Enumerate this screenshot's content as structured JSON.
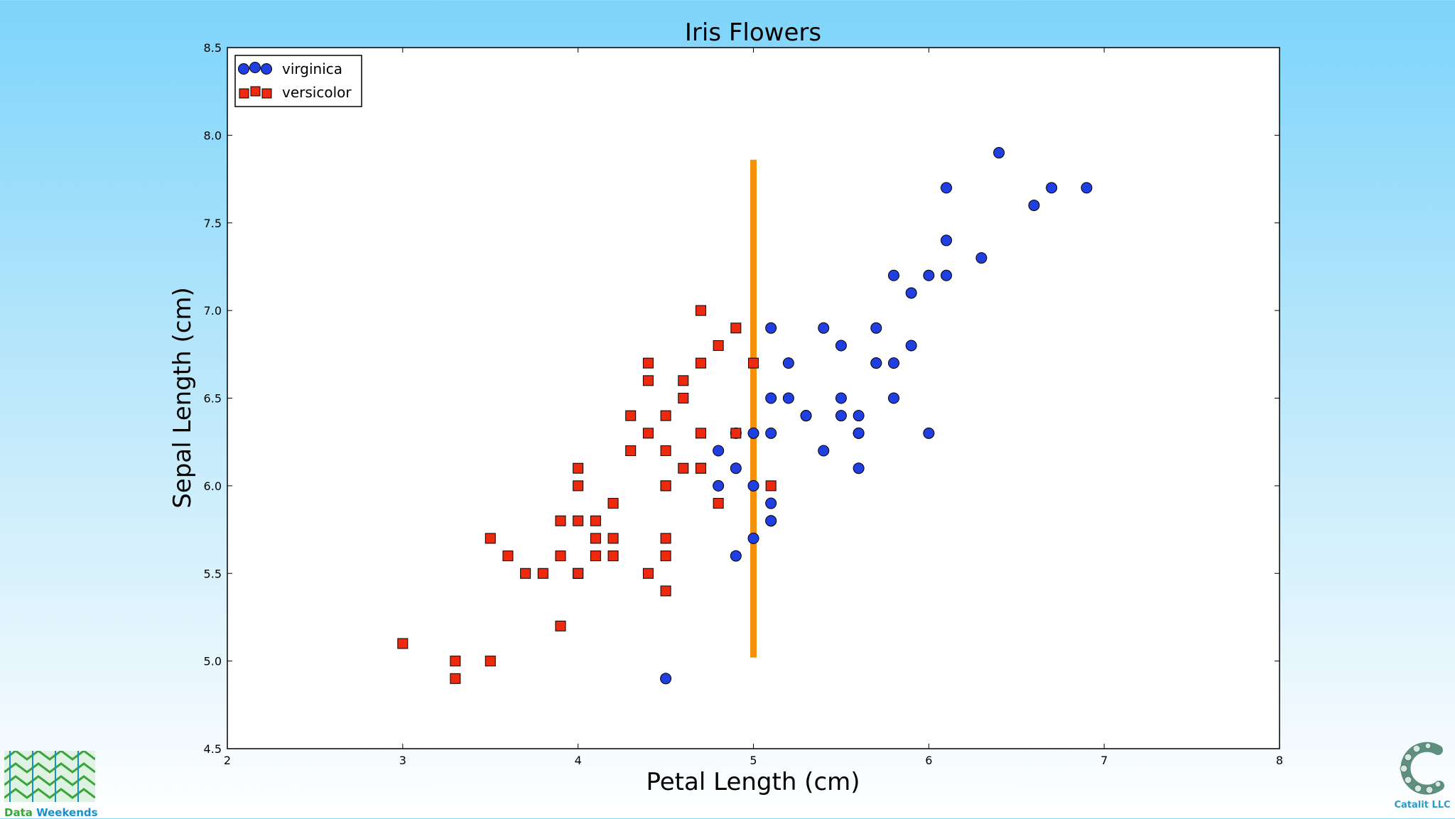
{
  "chart_data": {
    "type": "scatter",
    "title": "Iris Flowers",
    "xlabel": "Petal Length (cm)",
    "ylabel": "Sepal Length (cm)",
    "xlim": [
      2,
      8
    ],
    "ylim": [
      4.5,
      8.5
    ],
    "xticks": [
      "2",
      "3",
      "4",
      "5",
      "6",
      "7",
      "8"
    ],
    "yticks": [
      "4.5",
      "5.0",
      "5.5",
      "6.0",
      "6.5",
      "7.0",
      "7.5",
      "8.0",
      "8.5"
    ],
    "grid": false,
    "legend_position": "top-left",
    "series": [
      {
        "name": "virginica",
        "marker": "circle",
        "color": "#1f3fe0",
        "points": [
          [
            6.0,
            6.3
          ],
          [
            5.1,
            5.8
          ],
          [
            5.9,
            7.1
          ],
          [
            5.6,
            6.3
          ],
          [
            5.8,
            6.5
          ],
          [
            6.6,
            7.6
          ],
          [
            4.5,
            4.9
          ],
          [
            6.3,
            7.3
          ],
          [
            5.8,
            6.7
          ],
          [
            6.1,
            7.2
          ],
          [
            5.1,
            6.5
          ],
          [
            5.3,
            6.4
          ],
          [
            5.5,
            6.8
          ],
          [
            5.0,
            5.7
          ],
          [
            5.1,
            5.8
          ],
          [
            5.3,
            6.4
          ],
          [
            5.5,
            6.5
          ],
          [
            6.7,
            7.7
          ],
          [
            6.9,
            7.7
          ],
          [
            5.0,
            6.0
          ],
          [
            5.7,
            6.9
          ],
          [
            4.9,
            5.6
          ],
          [
            4.9,
            6.3
          ],
          [
            5.7,
            6.7
          ],
          [
            6.0,
            7.2
          ],
          [
            4.8,
            6.2
          ],
          [
            4.9,
            6.1
          ],
          [
            5.6,
            6.4
          ],
          [
            5.8,
            7.2
          ],
          [
            6.1,
            7.4
          ],
          [
            6.4,
            7.9
          ],
          [
            5.6,
            6.1
          ],
          [
            6.1,
            7.7
          ],
          [
            5.6,
            6.3
          ],
          [
            5.5,
            6.4
          ],
          [
            4.8,
            6.0
          ],
          [
            5.4,
            6.9
          ],
          [
            5.1,
            6.9
          ],
          [
            5.1,
            6.3
          ],
          [
            5.9,
            6.8
          ],
          [
            5.7,
            6.7
          ],
          [
            5.2,
            6.7
          ],
          [
            5.0,
            6.3
          ],
          [
            5.2,
            6.5
          ],
          [
            5.4,
            6.2
          ],
          [
            5.1,
            5.9
          ]
        ]
      },
      {
        "name": "versicolor",
        "marker": "square",
        "color": "#ee2a0e",
        "points": [
          [
            4.7,
            7.0
          ],
          [
            4.5,
            6.4
          ],
          [
            4.9,
            6.9
          ],
          [
            4.0,
            5.5
          ],
          [
            4.6,
            6.5
          ],
          [
            4.5,
            5.7
          ],
          [
            4.7,
            6.3
          ],
          [
            3.3,
            4.9
          ],
          [
            4.6,
            6.6
          ],
          [
            3.9,
            5.2
          ],
          [
            3.5,
            5.0
          ],
          [
            4.2,
            5.9
          ],
          [
            4.0,
            6.0
          ],
          [
            4.7,
            6.1
          ],
          [
            3.6,
            5.6
          ],
          [
            4.4,
            6.7
          ],
          [
            4.5,
            5.6
          ],
          [
            4.1,
            5.8
          ],
          [
            4.5,
            6.2
          ],
          [
            3.9,
            5.6
          ],
          [
            4.8,
            5.9
          ],
          [
            4.0,
            6.1
          ],
          [
            4.9,
            6.3
          ],
          [
            4.7,
            6.1
          ],
          [
            4.3,
            6.4
          ],
          [
            4.4,
            6.6
          ],
          [
            4.8,
            6.8
          ],
          [
            5.0,
            6.7
          ],
          [
            4.5,
            6.0
          ],
          [
            3.5,
            5.7
          ],
          [
            3.8,
            5.5
          ],
          [
            3.7,
            5.5
          ],
          [
            3.9,
            5.8
          ],
          [
            5.1,
            6.0
          ],
          [
            4.5,
            5.4
          ],
          [
            4.5,
            6.0
          ],
          [
            4.7,
            6.7
          ],
          [
            4.4,
            6.3
          ],
          [
            4.1,
            5.6
          ],
          [
            4.0,
            5.5
          ],
          [
            4.4,
            5.5
          ],
          [
            4.6,
            6.1
          ],
          [
            4.0,
            5.8
          ],
          [
            3.3,
            5.0
          ],
          [
            4.2,
            5.6
          ],
          [
            4.2,
            5.7
          ],
          [
            4.3,
            6.2
          ],
          [
            3.0,
            5.1
          ],
          [
            4.1,
            5.7
          ]
        ]
      }
    ],
    "annotations": [
      {
        "type": "vertical-line",
        "x": 5.0,
        "y_from": 5.02,
        "y_to": 7.86,
        "color": "#f5900a"
      }
    ]
  },
  "logos": {
    "left": {
      "word1": "Data",
      "word2": "Weekends"
    },
    "right": {
      "caption": "Catalit LLC"
    }
  }
}
